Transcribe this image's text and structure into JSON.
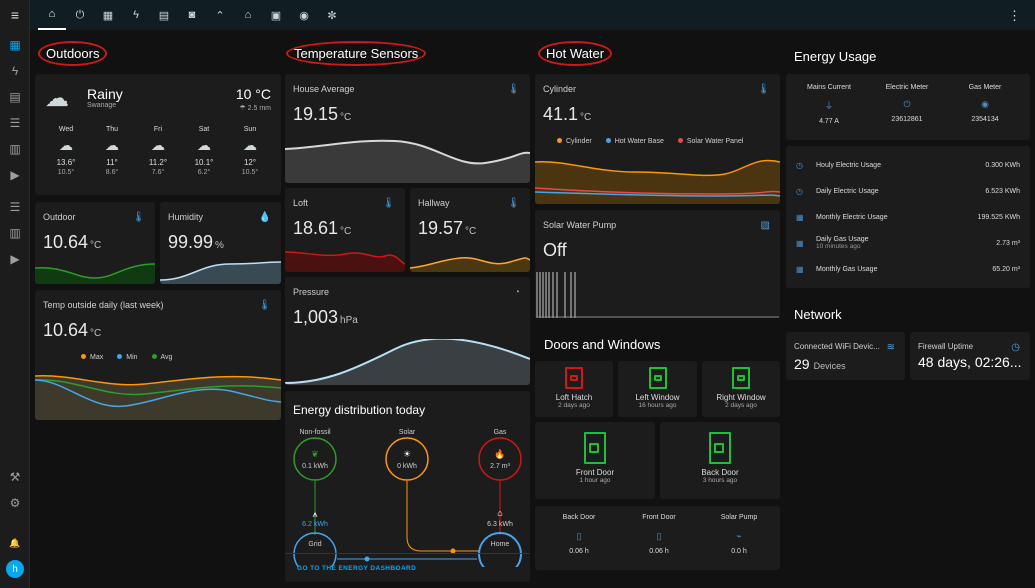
{
  "topbar": {
    "tabs": [
      {
        "icon": "home-icon",
        "glyph": "⌂",
        "active": true
      },
      {
        "icon": "power-icon",
        "glyph": "⏻"
      },
      {
        "icon": "solar-panel-icon",
        "glyph": "▦"
      },
      {
        "icon": "lightning-icon",
        "glyph": "ϟ"
      },
      {
        "icon": "meter-icon",
        "glyph": "▤"
      },
      {
        "icon": "washing-machine-icon",
        "glyph": "◙"
      },
      {
        "icon": "trend-icon",
        "glyph": "⌃"
      },
      {
        "icon": "house-icon",
        "glyph": "⌂"
      },
      {
        "icon": "panel-icon",
        "glyph": "▣"
      },
      {
        "icon": "speaker-icon",
        "glyph": "◉"
      },
      {
        "icon": "settings-cog-icon",
        "glyph": "✼"
      }
    ],
    "menu": "⋮"
  },
  "sidebar": {
    "menu_glyph": "≡",
    "items": [
      {
        "icon": "dashboard-icon",
        "glyph": "▦",
        "active": true
      },
      {
        "icon": "energy-icon",
        "glyph": "ϟ"
      },
      {
        "icon": "logbook-icon",
        "glyph": "▤"
      },
      {
        "icon": "list-icon",
        "glyph": "☰"
      },
      {
        "icon": "history-icon",
        "glyph": "▥"
      },
      {
        "icon": "media-icon",
        "glyph": "▶"
      },
      {
        "icon": "list-icon",
        "glyph": "☰"
      },
      {
        "icon": "chart-icon",
        "glyph": "▥"
      },
      {
        "icon": "media-icon",
        "glyph": "▶"
      }
    ],
    "tools_glyph": "⚒",
    "settings_glyph": "⚙",
    "bell_glyph": "🔔",
    "avatar": "h"
  },
  "headings": {
    "outdoors": "Outdoors",
    "temperature_sensors": "Temperature Sensors",
    "hot_water": "Hot Water",
    "energy_usage": "Energy Usage",
    "doors_windows": "Doors and Windows",
    "network": "Network"
  },
  "weather": {
    "condition": "Rainy",
    "location": "Swanage",
    "temperature": "10 °C",
    "precip": "2.5 mm",
    "forecast": [
      {
        "day": "Wed",
        "high": "13.6°",
        "low": "10.5°"
      },
      {
        "day": "Thu",
        "high": "11°",
        "low": "8.6°"
      },
      {
        "day": "Fri",
        "high": "11.2°",
        "low": "7.6°"
      },
      {
        "day": "Sat",
        "high": "10.1°",
        "low": "6.2°"
      },
      {
        "day": "Sun",
        "high": "12°",
        "low": "10.5°"
      }
    ]
  },
  "outdoor": {
    "title": "Outdoor",
    "value": "10.64",
    "unit": "°C"
  },
  "humidity": {
    "title": "Humidity",
    "value": "99.99",
    "unit": "%"
  },
  "temp_daily": {
    "title": "Temp outside daily (last week)",
    "value": "10.64",
    "unit": "°C",
    "legend": [
      {
        "name": "Max",
        "color": "#ff9800"
      },
      {
        "name": "Min",
        "color": "#44a4ec"
      },
      {
        "name": "Avg",
        "color": "#2e9d29"
      }
    ]
  },
  "house_avg": {
    "title": "House Average",
    "value": "19.15",
    "unit": "°C"
  },
  "loft": {
    "title": "Loft",
    "value": "18.61",
    "unit": "°C"
  },
  "hallway": {
    "title": "Hallway",
    "value": "19.57",
    "unit": "°C"
  },
  "pressure": {
    "title": "Pressure",
    "value": "1,003",
    "unit": "hPa"
  },
  "energy_dist": {
    "title": "Energy distribution today",
    "nonfossil": {
      "label": "Non-fossil",
      "value": "0.1 kWh"
    },
    "solar": {
      "label": "Solar",
      "value": "0 kWh"
    },
    "gas": {
      "label": "Gas",
      "value": "2.7 m³"
    },
    "grid": {
      "label": "Grid",
      "value": "6.2 kWh"
    },
    "home": {
      "label": "Home",
      "value": "6.3 kWh"
    },
    "link": "GO TO THE ENERGY DASHBOARD"
  },
  "cylinder": {
    "title": "Cylinder",
    "value": "41.1",
    "unit": "°C",
    "legend": [
      {
        "name": "Cylinder",
        "color": "#ff9800"
      },
      {
        "name": "Hot Water Base",
        "color": "#44a4ec"
      },
      {
        "name": "Solar Water Panel",
        "color": "#e84a4a"
      }
    ]
  },
  "solar_pump": {
    "title": "Solar Water Pump",
    "value": "Off"
  },
  "doors": [
    {
      "name": "Loft Hatch",
      "ago": "2 days ago",
      "color": "#d01818"
    },
    {
      "name": "Left Window",
      "ago": "16 hours ago",
      "color": "#19c23c"
    },
    {
      "name": "Right Window",
      "ago": "2 days ago",
      "color": "#19c23c"
    },
    {
      "name": "Front Door",
      "ago": "1 hour ago",
      "color": "#19c23c"
    },
    {
      "name": "Back Door",
      "ago": "3 hours ago",
      "color": "#19c23c"
    }
  ],
  "door_stats": [
    {
      "name": "Back Door",
      "value": "0.06 h"
    },
    {
      "name": "Front Door",
      "value": "0.06 h"
    },
    {
      "name": "Solar Pump",
      "value": "0.0 h"
    }
  ],
  "meters": [
    {
      "name": "Mains Current",
      "value": "4.77 A",
      "icon": "plug-icon",
      "glyph": "⏚"
    },
    {
      "name": "Electric Meter",
      "value": "23612861",
      "icon": "power-icon",
      "glyph": "⏻"
    },
    {
      "name": "Gas Meter",
      "value": "2354134",
      "icon": "eye-icon",
      "glyph": "◉"
    }
  ],
  "usage": [
    {
      "name": "Houly Electric Usage",
      "sub": "",
      "value": "0.300 KWh",
      "glyph": "◷"
    },
    {
      "name": "Daily Electric Usage",
      "sub": "",
      "value": "6.523 KWh",
      "glyph": "◷"
    },
    {
      "name": "Monthly Electric Usage",
      "sub": "",
      "value": "199.525 KWh",
      "glyph": "▦"
    },
    {
      "name": "Daily Gas Usage",
      "sub": "10 minutes ago",
      "value": "2.73 m³",
      "glyph": "▦"
    },
    {
      "name": "Monthly Gas Usage",
      "sub": "",
      "value": "65.20 m³",
      "glyph": "▦"
    }
  ],
  "wifi": {
    "title": "Connected WiFi Devic...",
    "value": "29",
    "unit": "Devices"
  },
  "firewall": {
    "title": "Firewall Uptime",
    "value": "48 days, 02:26..."
  }
}
